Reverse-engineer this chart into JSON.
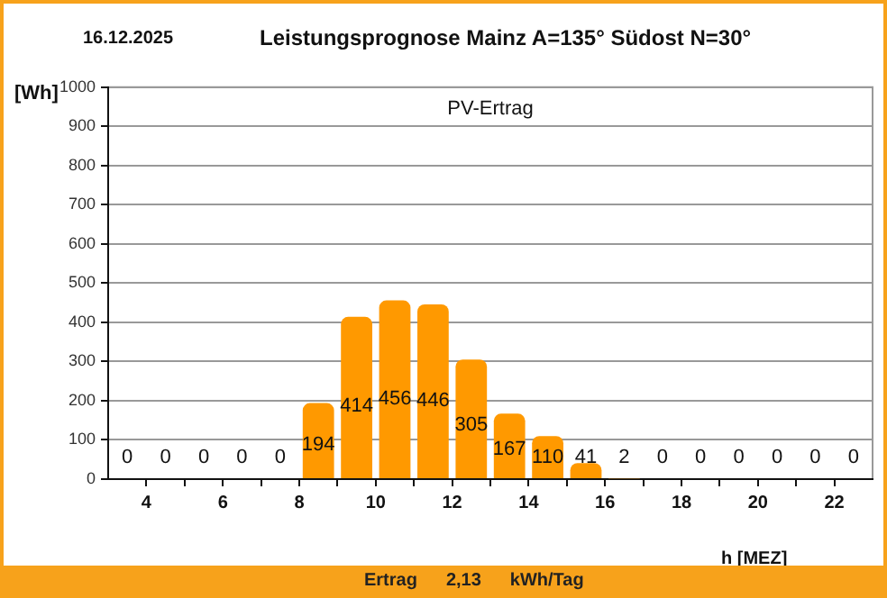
{
  "chart_data": {
    "type": "bar",
    "title": "Leistungsprognose Mainz A=135° Südost N=30°",
    "ylabel": "[Wh]",
    "xlabel": "h [MEZ]",
    "annotations": [
      "16.12.2025",
      "PV-Ertrag",
      "Ertrag",
      "2,13",
      "kWh/Tag"
    ],
    "x": [
      3.5,
      4.5,
      5.5,
      6.5,
      7.5,
      8.5,
      9.5,
      10.5,
      11.5,
      12.5,
      13.5,
      14.5,
      15.5,
      16.5,
      17.5,
      18.5,
      19.5,
      20.5,
      21.5,
      22.5
    ],
    "values": [
      0,
      0,
      0,
      0,
      0,
      194,
      414,
      456,
      446,
      305,
      167,
      110,
      41,
      2,
      0,
      0,
      0,
      0,
      0,
      0
    ],
    "color": "#ff9900",
    "xlim": [
      3,
      23
    ],
    "xticks": [
      4,
      {
        "value": 5,
        "label": null
      },
      6,
      {
        "value": 7,
        "label": null
      },
      8,
      {
        "value": 9,
        "label": null
      },
      10,
      {
        "value": 11,
        "label": null
      },
      12,
      {
        "value": 13,
        "label": null
      },
      14,
      {
        "value": 15,
        "label": null
      },
      16,
      {
        "value": 17,
        "label": null
      },
      18,
      {
        "value": 19,
        "label": null
      },
      20,
      {
        "value": 21,
        "label": null
      },
      22
    ],
    "ylim": [
      0,
      1000
    ],
    "yticks": [
      0,
      100,
      200,
      300,
      400,
      500,
      600,
      700,
      800,
      900,
      1000
    ],
    "grid": "y",
    "data_labels": true,
    "legend": false
  }
}
